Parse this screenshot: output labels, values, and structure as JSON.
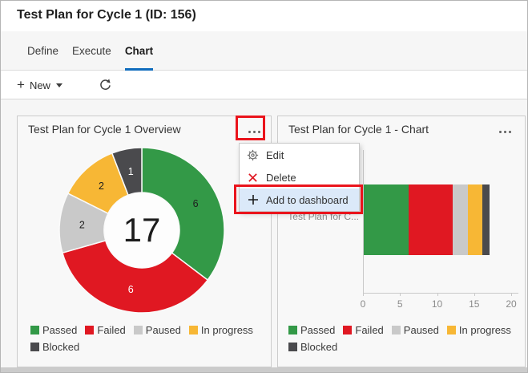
{
  "header": {
    "title": "Test Plan for Cycle 1 (ID: 156)"
  },
  "tabs": {
    "items": [
      {
        "label": "Define",
        "active": false
      },
      {
        "label": "Execute",
        "active": false
      },
      {
        "label": "Chart",
        "active": true
      }
    ]
  },
  "toolbar": {
    "new_label": "New"
  },
  "context_menu": {
    "items": [
      {
        "icon": "gear-icon",
        "label": "Edit"
      },
      {
        "icon": "x-icon",
        "label": "Delete"
      },
      {
        "icon": "plus-icon",
        "label": "Add to dashboard",
        "highlighted": true
      }
    ]
  },
  "cards": {
    "overview_title": "Test Plan for Cycle 1 Overview",
    "chart_title": "Test Plan for Cycle 1 - Chart"
  },
  "legend": [
    {
      "label": "Passed",
      "color": "#339947"
    },
    {
      "label": "Failed",
      "color": "#E01822"
    },
    {
      "label": "Paused",
      "color": "#C9C9C9"
    },
    {
      "label": "In progress",
      "color": "#F7B735"
    },
    {
      "label": "Blocked",
      "color": "#4A4A4D"
    }
  ],
  "colors": {
    "accent_blue": "#0F6CBD",
    "annotation_red": "#EA141C",
    "menu_highlight": "#DBE9F9"
  },
  "chart_data": [
    {
      "type": "pie",
      "variant": "donut",
      "title": "Test Plan for Cycle 1 Overview",
      "total": "17",
      "categories": [
        "Passed",
        "Failed",
        "Paused",
        "In progress",
        "Blocked"
      ],
      "values": [
        6,
        6,
        2,
        2,
        1
      ],
      "colors": [
        "#339947",
        "#E01822",
        "#C9C9C9",
        "#F7B735",
        "#4A4A4D"
      ],
      "label_colors": [
        "#1e1e1e",
        "#ffffff",
        "#1e1e1e",
        "#1e1e1e",
        "#ffffff"
      ],
      "legend_position": "bottom"
    },
    {
      "type": "bar",
      "variant": "horizontal-stacked",
      "title": "Test Plan for Cycle 1 - Chart",
      "category_label": "Test Plan for C...",
      "categories": [
        "Passed",
        "Failed",
        "Paused",
        "In progress",
        "Blocked"
      ],
      "values": [
        6,
        6,
        2,
        2,
        1
      ],
      "colors": [
        "#339947",
        "#E01822",
        "#C9C9C9",
        "#F7B735",
        "#4A4A4D"
      ],
      "xlim": [
        0,
        20
      ],
      "xticks": [
        0,
        5,
        10,
        15,
        20
      ],
      "legend_position": "bottom"
    }
  ]
}
